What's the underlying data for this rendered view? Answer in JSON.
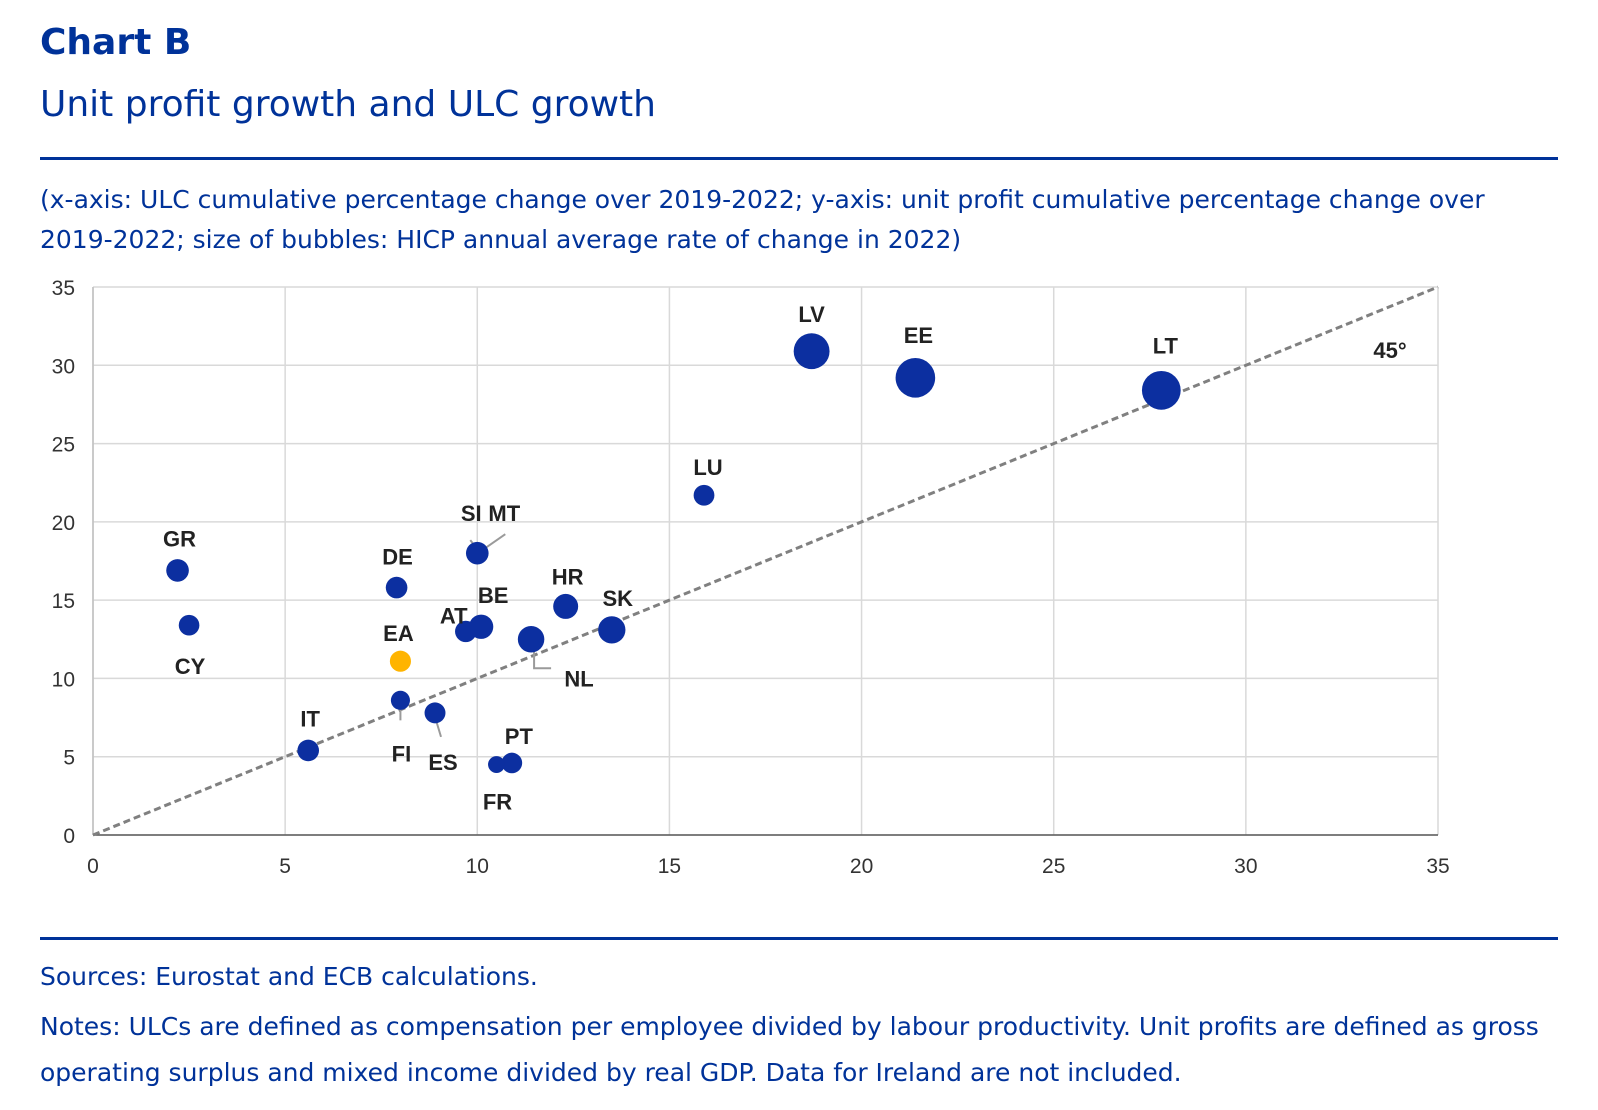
{
  "header": {
    "chart_label": "Chart B",
    "title": "Unit profit growth and ULC growth",
    "subtitle": "(x-axis: ULC cumulative percentage change over 2019-2022; y-axis: unit profit cumulative percentage change over 2019-2022; size of bubbles: HICP annual average rate of change in 2022)"
  },
  "footer": {
    "sources": "Sources: Eurostat and ECB calculations.",
    "notes": "Notes: ULCs are defined as compensation per employee divided by labour productivity. Unit profits are defined as gross operating surplus and mixed income divided by real GDP. Data for Ireland are not included."
  },
  "colors": {
    "brand": "#003299",
    "bubble": "#0c2fa0",
    "highlight": "#ffb400",
    "grid": "#d9d9d9",
    "reference_line": "#808080"
  },
  "chart_data": {
    "type": "scatter",
    "xlim": [
      0,
      35
    ],
    "ylim": [
      0,
      35
    ],
    "xticks": [
      0,
      5,
      10,
      15,
      20,
      25,
      30,
      35
    ],
    "yticks": [
      0,
      5,
      10,
      15,
      20,
      25,
      30,
      35
    ],
    "grid": true,
    "reference_line": {
      "label": "45°",
      "from": [
        0,
        0
      ],
      "to": [
        35,
        35
      ]
    },
    "points": [
      {
        "label": "GR",
        "x": 2.2,
        "y": 16.9,
        "size": 9.3,
        "highlight": false
      },
      {
        "label": "CY",
        "x": 2.5,
        "y": 13.4,
        "size": 8.1,
        "highlight": false
      },
      {
        "label": "DE",
        "x": 7.9,
        "y": 15.8,
        "size": 8.7,
        "highlight": false
      },
      {
        "label": "EA",
        "x": 8.0,
        "y": 11.1,
        "size": 8.4,
        "highlight": true
      },
      {
        "label": "FI",
        "x": 8.0,
        "y": 8.6,
        "size": 7.2,
        "highlight": false
      },
      {
        "label": "ES",
        "x": 8.9,
        "y": 7.8,
        "size": 8.3,
        "highlight": false
      },
      {
        "label": "IT",
        "x": 5.6,
        "y": 5.4,
        "size": 8.7,
        "highlight": false
      },
      {
        "label": "AT",
        "x": 9.7,
        "y": 13.0,
        "size": 8.6,
        "highlight": false
      },
      {
        "label": "BE",
        "x": 10.1,
        "y": 13.3,
        "size": 10.3,
        "highlight": false
      },
      {
        "label": "SI",
        "x": 10.0,
        "y": 18.0,
        "size": 9.3,
        "highlight": false
      },
      {
        "label": "MT",
        "x": 10.0,
        "y": 18.0,
        "size": 6.1,
        "highlight": false
      },
      {
        "label": "NL",
        "x": 11.4,
        "y": 12.5,
        "size": 11.6,
        "highlight": false
      },
      {
        "label": "HR",
        "x": 12.3,
        "y": 14.6,
        "size": 10.7,
        "highlight": false
      },
      {
        "label": "SK",
        "x": 13.5,
        "y": 13.1,
        "size": 12.1,
        "highlight": false
      },
      {
        "label": "PT",
        "x": 10.9,
        "y": 4.6,
        "size": 8.1,
        "highlight": false
      },
      {
        "label": "FR",
        "x": 10.5,
        "y": 4.5,
        "size": 5.9,
        "highlight": false
      },
      {
        "label": "LU",
        "x": 15.9,
        "y": 21.7,
        "size": 8.2,
        "highlight": false
      },
      {
        "label": "LV",
        "x": 18.7,
        "y": 30.9,
        "size": 17.2,
        "highlight": false
      },
      {
        "label": "EE",
        "x": 21.4,
        "y": 29.2,
        "size": 19.4,
        "highlight": false
      },
      {
        "label": "LT",
        "x": 27.8,
        "y": 28.4,
        "size": 18.9,
        "highlight": false
      }
    ]
  }
}
